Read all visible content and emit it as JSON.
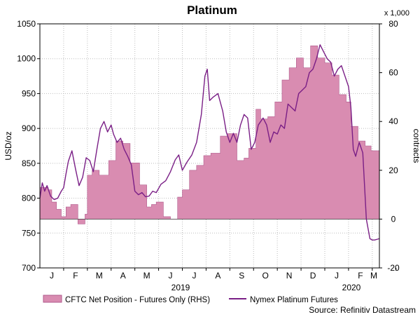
{
  "colors": {
    "price_line": "#7a1f86",
    "cftc_fill": "#d98cb1",
    "cftc_stroke": "#b05a8c",
    "grid": "#bdbdbd"
  },
  "chart_data": {
    "type": "area",
    "title": "Platinum",
    "left_axis": {
      "label": "USD/oz",
      "range": [
        700,
        1050
      ],
      "ticks": [
        700,
        750,
        800,
        850,
        900,
        950,
        1000,
        1050
      ]
    },
    "right_axis": {
      "label": "contracts",
      "multiplier_label": "x 1,000",
      "range": [
        -20,
        80
      ],
      "ticks": [
        -20,
        0,
        20,
        40,
        60,
        80
      ]
    },
    "x_axis": {
      "months": [
        "J",
        "F",
        "M",
        "A",
        "M",
        "J",
        "J",
        "A",
        "S",
        "O",
        "N",
        "D",
        "J",
        "F",
        "M"
      ],
      "years": [
        "2019",
        "2020"
      ],
      "range_months": [
        0,
        14.3
      ]
    },
    "legend": {
      "position": "bottom"
    },
    "grid": "dotted",
    "source": "Source: Refinitiv Datastream",
    "series": [
      {
        "name": "CFTC Net Position - Futures Only (RHS)",
        "type": "step-area",
        "axis": "right",
        "x": [
          0.0,
          0.35,
          0.5,
          0.7,
          0.9,
          1.1,
          1.3,
          1.6,
          1.9,
          2.0,
          2.2,
          2.5,
          2.9,
          3.2,
          3.5,
          3.8,
          4.2,
          4.5,
          4.7,
          4.9,
          5.2,
          5.5,
          5.8,
          6.0,
          6.3,
          6.6,
          6.9,
          7.2,
          7.6,
          7.9,
          8.3,
          8.6,
          8.8,
          9.1,
          9.3,
          9.6,
          9.9,
          10.2,
          10.5,
          10.8,
          11.1,
          11.4,
          11.7,
          12.0,
          12.3,
          12.6,
          12.9,
          13.1,
          13.4,
          13.7,
          13.95,
          14.3
        ],
        "values": [
          13,
          12,
          7,
          4,
          1,
          5,
          6,
          -2,
          2,
          18,
          20,
          18,
          24,
          32,
          31,
          23,
          14,
          5,
          6,
          7,
          1,
          0,
          9,
          12,
          20,
          22,
          26,
          27,
          34,
          35,
          24,
          25,
          29,
          45,
          41,
          42,
          48,
          57,
          62,
          66,
          62,
          71,
          66,
          64,
          59,
          51,
          48,
          38,
          32,
          30,
          28,
          28
        ]
      },
      {
        "name": "Nymex Platinum Futures",
        "type": "line",
        "axis": "left",
        "x": [
          0.0,
          0.1,
          0.2,
          0.3,
          0.45,
          0.6,
          0.75,
          0.9,
          1.0,
          1.1,
          1.2,
          1.35,
          1.5,
          1.65,
          1.8,
          1.95,
          2.1,
          2.25,
          2.4,
          2.55,
          2.7,
          2.85,
          3.0,
          3.1,
          3.25,
          3.4,
          3.55,
          3.7,
          3.85,
          4.0,
          4.15,
          4.3,
          4.45,
          4.6,
          4.75,
          4.9,
          5.1,
          5.3,
          5.5,
          5.7,
          5.85,
          6.0,
          6.2,
          6.4,
          6.6,
          6.8,
          6.95,
          7.05,
          7.15,
          7.3,
          7.5,
          7.7,
          7.85,
          8.0,
          8.15,
          8.3,
          8.45,
          8.6,
          8.75,
          8.9,
          9.05,
          9.2,
          9.4,
          9.55,
          9.7,
          9.85,
          10.0,
          10.15,
          10.3,
          10.45,
          10.6,
          10.75,
          10.9,
          11.05,
          11.2,
          11.35,
          11.5,
          11.65,
          11.8,
          11.95,
          12.1,
          12.25,
          12.4,
          12.55,
          12.7,
          12.85,
          13.0,
          13.1,
          13.2,
          13.3,
          13.45,
          13.6,
          13.75,
          13.9,
          14.0,
          14.1,
          14.2,
          14.3
        ],
        "values": [
          800,
          822,
          810,
          818,
          803,
          798,
          800,
          810,
          815,
          835,
          853,
          868,
          842,
          818,
          830,
          858,
          854,
          838,
          870,
          900,
          910,
          895,
          905,
          892,
          880,
          886,
          870,
          860,
          848,
          810,
          805,
          808,
          802,
          803,
          810,
          808,
          820,
          825,
          838,
          855,
          862,
          840,
          852,
          862,
          880,
          920,
          975,
          985,
          940,
          945,
          950,
          925,
          895,
          880,
          893,
          880,
          905,
          920,
          915,
          870,
          880,
          905,
          915,
          905,
          880,
          895,
          892,
          905,
          900,
          935,
          930,
          925,
          950,
          955,
          960,
          980,
          985,
          1000,
          1020,
          1010,
          1000,
          995,
          975,
          985,
          990,
          975,
          960,
          930,
          870,
          860,
          880,
          865,
          770,
          742,
          740,
          740,
          741,
          742
        ]
      }
    ]
  }
}
